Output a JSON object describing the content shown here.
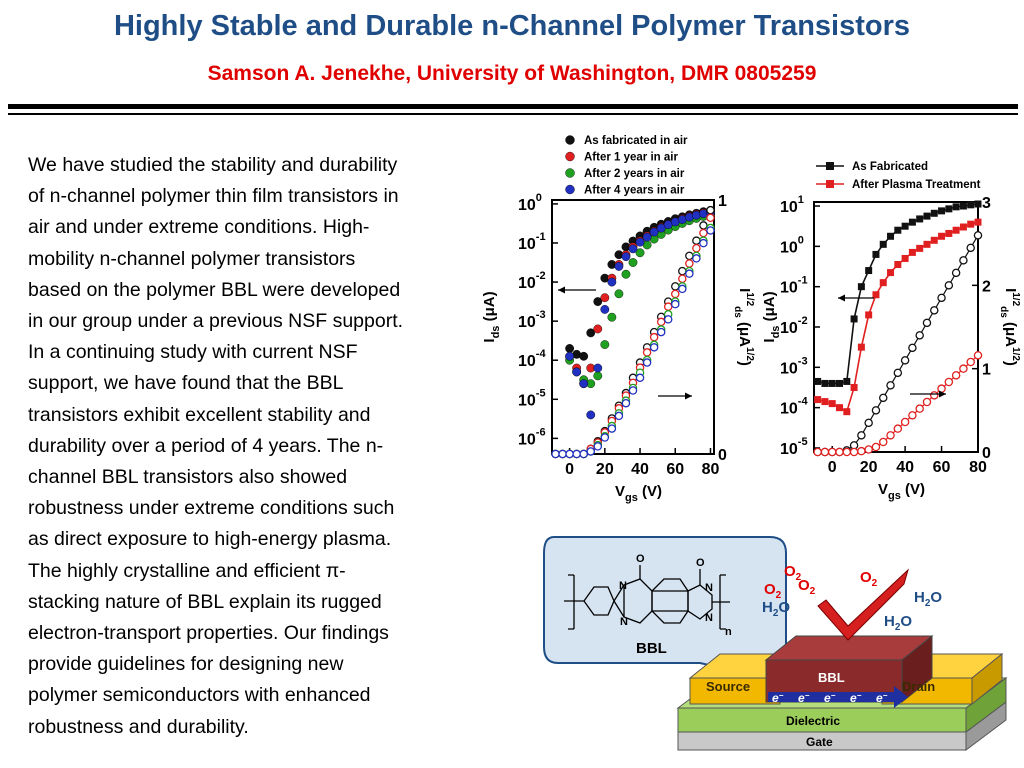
{
  "title": "Highly Stable and Durable n-Channel Polymer Transistors",
  "subtitle": "Samson A. Jenekhe, University of Washington, DMR 0805259",
  "body_lines": [
    "We have studied the stability and durability",
    "of n-channel polymer thin film transistors in",
    "air and under extreme conditions. High-",
    "mobility n-channel polymer transistors",
    "based on the polymer BBL were developed",
    "in our group under a previous NSF support.",
    "In a continuing study with current NSF",
    "support, we have found that the BBL",
    "transistors exhibit excellent stability and",
    "durability over a period of 4 years. The n-",
    "channel BBL transistors also showed",
    "robustness under extreme conditions such",
    "as direct exposure to high-energy plasma.",
    "The highly crystalline and efficient π-",
    "stacking nature of BBL explain its rugged",
    "electron-transport properties. Our findings",
    "provide guidelines for designing new",
    "polymer semiconductors with enhanced",
    "robustness and durability."
  ],
  "chart_data": [
    {
      "type": "scatter",
      "legend": [
        "As fabricated in air",
        "After 1 year in air",
        "After 2 years in air",
        "After 4 years in air"
      ],
      "colors": [
        "#111111",
        "#E02020",
        "#20A020",
        "#2030C0"
      ],
      "x_ticks": [
        "0",
        "20",
        "40",
        "60",
        "80"
      ],
      "xlabel_main": "V",
      "xlabel_sub": "gs",
      "xlabel_unit": "(V)",
      "ylabel_main": "I",
      "ylabel_sub": "ds",
      "ylabel_unit": "(μA)",
      "y_ticks": [
        "-6",
        "-5",
        "-4",
        "-3",
        "-2",
        "-1",
        "0"
      ],
      "y_right_ticks": [
        "0",
        "1"
      ],
      "y2label_main": "I",
      "y2label_sup": "1/2",
      "y2label_sub": "ds",
      "y2label_unit": "(μA",
      "y2label_unit_sup": "1/2",
      "y2label_close": ")",
      "xlim": [
        -10,
        82
      ],
      "ylog_lim": [
        -6.4,
        0.1
      ],
      "y2lim": [
        0,
        1
      ],
      "log_series": [
        {
          "name": "As fabricated in air",
          "x": [
            0,
            4,
            8,
            12,
            16,
            20,
            24,
            28,
            32,
            36,
            40,
            44,
            48,
            52,
            56,
            60,
            64,
            68,
            72,
            76,
            80
          ],
          "logy": [
            -3.7,
            -3.85,
            -3.9,
            -3.3,
            -2.5,
            -1.9,
            -1.55,
            -1.3,
            -1.1,
            -0.95,
            -0.82,
            -0.7,
            -0.6,
            -0.52,
            -0.45,
            -0.38,
            -0.33,
            -0.28,
            -0.24,
            -0.2,
            -0.17
          ]
        },
        {
          "name": "After 1 year in air",
          "x": [
            0,
            4,
            8,
            12,
            16,
            20,
            24,
            28,
            32,
            36,
            40,
            44,
            48,
            52,
            56,
            60,
            64,
            68,
            72,
            76,
            80
          ],
          "logy": [
            -3.9,
            -4.2,
            -4.6,
            -4.2,
            -3.2,
            -2.4,
            -1.9,
            -1.55,
            -1.3,
            -1.1,
            -0.95,
            -0.82,
            -0.7,
            -0.6,
            -0.52,
            -0.45,
            -0.38,
            -0.32,
            -0.27,
            -0.23,
            -0.2
          ]
        },
        {
          "name": "After 2 years in air",
          "x": [
            0,
            4,
            8,
            12,
            16,
            20,
            24,
            28,
            32,
            36,
            40,
            44,
            48,
            52,
            56,
            60,
            64,
            68,
            72,
            76,
            80
          ],
          "logy": [
            -4.0,
            -4.3,
            -4.5,
            -4.6,
            -4.4,
            -3.6,
            -2.9,
            -2.3,
            -1.8,
            -1.5,
            -1.25,
            -1.05,
            -0.9,
            -0.78,
            -0.67,
            -0.58,
            -0.5,
            -0.43,
            -0.37,
            -0.32,
            -0.28
          ]
        },
        {
          "name": "After 4 years in air",
          "x": [
            0,
            4,
            8,
            12,
            16,
            20,
            24,
            28,
            32,
            36,
            40,
            44,
            48,
            52,
            56,
            60,
            64,
            68,
            72,
            76,
            80
          ],
          "logy": [
            -3.9,
            -4.3,
            -4.6,
            -5.4,
            -4.2,
            -2.7,
            -2.0,
            -1.6,
            -1.35,
            -1.15,
            -0.98,
            -0.85,
            -0.72,
            -0.62,
            -0.53,
            -0.46,
            -0.4,
            -0.34,
            -0.29,
            -0.25,
            -0.22
          ]
        }
      ],
      "sqrt_series": [
        {
          "name": "As fabricated in air",
          "x": [
            -8,
            -4,
            0,
            4,
            8,
            12,
            16,
            20,
            24,
            28,
            32,
            36,
            40,
            44,
            48,
            52,
            56,
            60,
            64,
            68,
            72,
            76,
            80
          ],
          "y": [
            0.0,
            0.0,
            0.0,
            0.0,
            0.0,
            0.02,
            0.05,
            0.09,
            0.14,
            0.19,
            0.24,
            0.3,
            0.36,
            0.42,
            0.48,
            0.54,
            0.6,
            0.66,
            0.72,
            0.78,
            0.84,
            0.9,
            0.96
          ]
        },
        {
          "name": "After 1 year in air",
          "x": [
            -8,
            -4,
            0,
            4,
            8,
            12,
            16,
            20,
            24,
            28,
            32,
            36,
            40,
            44,
            48,
            52,
            56,
            60,
            64,
            68,
            72,
            76,
            80
          ],
          "y": [
            0.0,
            0.0,
            0.0,
            0.0,
            0.0,
            0.02,
            0.045,
            0.085,
            0.13,
            0.18,
            0.23,
            0.28,
            0.34,
            0.4,
            0.46,
            0.52,
            0.58,
            0.63,
            0.69,
            0.75,
            0.81,
            0.87,
            0.93
          ]
        },
        {
          "name": "After 2 years in air",
          "x": [
            -8,
            -4,
            0,
            4,
            8,
            12,
            16,
            20,
            24,
            28,
            32,
            36,
            40,
            44,
            48,
            52,
            56,
            60,
            64,
            68,
            72,
            76,
            80
          ],
          "y": [
            0.0,
            0.0,
            0.0,
            0.0,
            0.0,
            0.01,
            0.035,
            0.07,
            0.11,
            0.16,
            0.21,
            0.26,
            0.32,
            0.37,
            0.43,
            0.49,
            0.55,
            0.6,
            0.66,
            0.72,
            0.78,
            0.84,
            0.89
          ]
        },
        {
          "name": "After 4 years in air",
          "x": [
            -8,
            -4,
            0,
            4,
            8,
            12,
            16,
            20,
            24,
            28,
            32,
            36,
            40,
            44,
            48,
            52,
            56,
            60,
            64,
            68,
            72,
            76,
            80
          ],
          "y": [
            0.0,
            0.0,
            0.0,
            0.0,
            0.0,
            0.01,
            0.03,
            0.065,
            0.1,
            0.15,
            0.2,
            0.25,
            0.3,
            0.36,
            0.42,
            0.48,
            0.53,
            0.59,
            0.65,
            0.71,
            0.77,
            0.83,
            0.88
          ]
        }
      ]
    },
    {
      "type": "line",
      "legend": [
        "As Fabricated",
        "After Plasma Treatment"
      ],
      "colors": [
        "#111111",
        "#E02020"
      ],
      "x_ticks": [
        "0",
        "20",
        "40",
        "60",
        "80"
      ],
      "xlabel_main": "V",
      "xlabel_sub": "gs",
      "xlabel_unit": "(V)",
      "ylabel_main": "I",
      "ylabel_sub": "ds",
      "ylabel_unit": "(μA)",
      "y_ticks": [
        "-5",
        "-4",
        "-3",
        "-2",
        "-1",
        "0",
        "1"
      ],
      "y_right_ticks": [
        "0",
        "1",
        "2",
        "3"
      ],
      "y2label_main": "I",
      "y2label_sup": "1/2",
      "y2label_sub": "ds",
      "y2label_unit": "(μA",
      "y2label_unit_sup": "1/2",
      "y2label_close": ")",
      "xlim": [
        -10,
        80
      ],
      "ylog_lim": [
        -5.1,
        1.1
      ],
      "y2lim": [
        0,
        3
      ],
      "log_series": [
        {
          "name": "As Fabricated",
          "x": [
            -8,
            -4,
            0,
            4,
            8,
            12,
            16,
            20,
            24,
            28,
            32,
            36,
            40,
            44,
            48,
            52,
            56,
            60,
            64,
            68,
            72,
            76,
            80
          ],
          "logy": [
            -3.35,
            -3.4,
            -3.4,
            -3.4,
            -3.35,
            -1.8,
            -1.0,
            -0.6,
            -0.2,
            0.05,
            0.25,
            0.4,
            0.5,
            0.6,
            0.68,
            0.75,
            0.82,
            0.88,
            0.93,
            0.98,
            1.0,
            1.03,
            1.05
          ]
        },
        {
          "name": "After Plasma Treatment",
          "x": [
            -8,
            -4,
            0,
            4,
            8,
            12,
            16,
            20,
            24,
            28,
            32,
            36,
            40,
            44,
            48,
            52,
            56,
            60,
            64,
            68,
            72,
            76,
            80
          ],
          "logy": [
            -3.8,
            -3.85,
            -3.9,
            -4.0,
            -4.1,
            -3.5,
            -2.5,
            -1.7,
            -1.2,
            -0.9,
            -0.65,
            -0.45,
            -0.3,
            -0.15,
            -0.05,
            0.05,
            0.15,
            0.25,
            0.32,
            0.4,
            0.48,
            0.55,
            0.6
          ]
        }
      ],
      "sqrt_series": [
        {
          "name": "As Fabricated",
          "x": [
            -8,
            -4,
            0,
            4,
            8,
            12,
            16,
            20,
            24,
            28,
            32,
            36,
            40,
            44,
            48,
            52,
            56,
            60,
            64,
            68,
            72,
            76,
            80
          ],
          "y": [
            0.0,
            0.0,
            0.0,
            0.0,
            0.02,
            0.08,
            0.2,
            0.35,
            0.5,
            0.65,
            0.8,
            0.95,
            1.1,
            1.25,
            1.4,
            1.55,
            1.7,
            1.85,
            2.0,
            2.15,
            2.3,
            2.45,
            2.6
          ]
        },
        {
          "name": "After Plasma Treatment",
          "x": [
            -8,
            -4,
            0,
            4,
            8,
            12,
            16,
            20,
            24,
            28,
            32,
            36,
            40,
            44,
            48,
            52,
            56,
            60,
            64,
            68,
            72,
            76,
            80
          ],
          "y": [
            0.0,
            0.0,
            0.0,
            0.0,
            0.0,
            0.0,
            0.01,
            0.03,
            0.06,
            0.12,
            0.2,
            0.28,
            0.36,
            0.44,
            0.52,
            0.6,
            0.68,
            0.76,
            0.84,
            0.92,
            1.0,
            1.08,
            1.16
          ]
        }
      ]
    }
  ],
  "bbl": {
    "label": "BBL",
    "subscript_n": "n",
    "atoms": {
      "o": "O",
      "n": "N"
    }
  },
  "device": {
    "bbl_label": "BBL",
    "source_label": "Source",
    "drain_label": "Drain",
    "dielectric_label": "Dielectric",
    "gate_label": "Gate",
    "electron": "e",
    "electron_sup": "−",
    "gases": [
      {
        "main": "O",
        "sub": "2",
        "color": "#E00000"
      },
      {
        "main": "O",
        "sub": "2",
        "color": "#E00000"
      },
      {
        "main": "O",
        "sub": "2",
        "color": "#E00000"
      },
      {
        "main": "O",
        "sub": "2",
        "color": "#E00000"
      },
      {
        "main": "H",
        "sub": "2",
        "tail": "O",
        "color": "#1F4E87"
      },
      {
        "main": "H",
        "sub": "2",
        "tail": "O",
        "color": "#1F4E87"
      },
      {
        "main": "H",
        "sub": "2",
        "tail": "O",
        "color": "#1F4E87"
      }
    ]
  }
}
